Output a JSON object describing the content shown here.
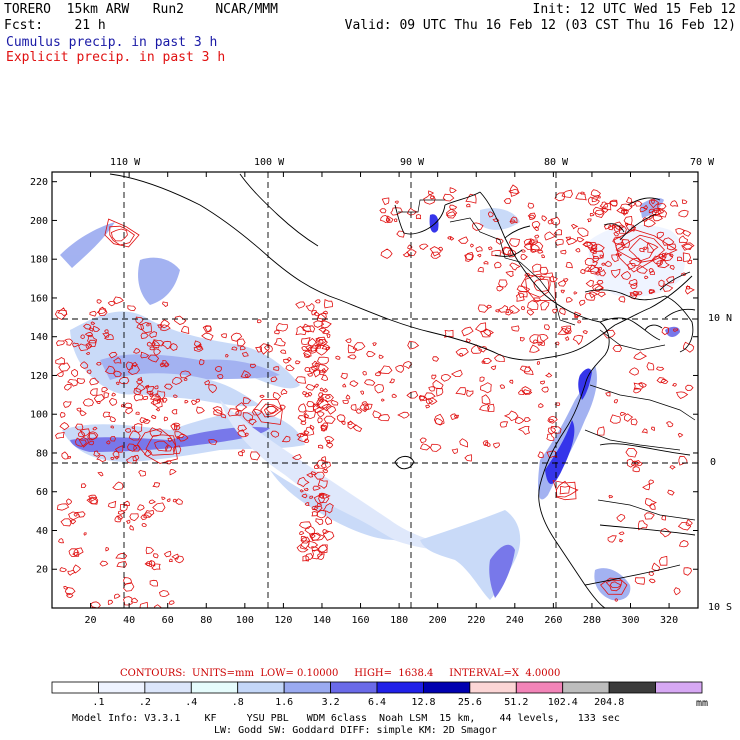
{
  "header": {
    "line1_left": "TORERO  15km ARW   Run2    NCAR/MMM",
    "line1_right": "Init: 12 UTC Wed 15 Feb 12",
    "line2_left": "Fcst:    21 h",
    "line2_right": "Valid: 09 UTC Thu 16 Feb 12 (03 CST Thu 16 Feb 12)",
    "cumulus_label": "Cumulus precip. in past 3 h",
    "explicit_label": "Explicit precip. in past 3 h"
  },
  "map": {
    "top_lon_labels": [
      "110 W",
      "100 W",
      "90 W",
      "80 W",
      "70 W"
    ],
    "right_lat_labels": [
      "10 N",
      "0",
      "10 S"
    ],
    "y_ticks": [
      "20",
      "40",
      "60",
      "80",
      "100",
      "120",
      "140",
      "160",
      "180",
      "200",
      "220"
    ],
    "x_ticks": [
      "20",
      "40",
      "60",
      "80",
      "100",
      "120",
      "140",
      "160",
      "180",
      "200",
      "220",
      "240",
      "260",
      "280",
      "300",
      "320"
    ],
    "cumulus_color": "#2a2ae0",
    "explicit_color": "#e01010"
  },
  "contours_info": {
    "text": "CONTOURS:  UNITS=mm  LOW= 0.10000     HIGH=  1638.4     INTERVAL=X  4.0000"
  },
  "colorbar": {
    "labels": [
      ".1",
      ".2",
      ".4",
      ".8",
      "1.6",
      "3.2",
      "6.4",
      "12.8",
      "25.6",
      "51.2",
      "102.4",
      "204.8"
    ],
    "unit": "mm",
    "colors": [
      "#ffffff",
      "#eef3ff",
      "#dce6fb",
      "#e6fcfc",
      "#c4d7f8",
      "#9aaaf0",
      "#6a6ae8",
      "#2020e8",
      "#0000b0",
      "#fcd6d6",
      "#f284b8",
      "#bdbdbd",
      "#3c3c3c",
      "#d7a8f4"
    ]
  },
  "footer": {
    "line1": "Model Info: V3.3.1    KF     YSU PBL   WDM 6class  Noah LSM  15 km,    44 levels,   133 sec",
    "line2": "LW: Godd SW: Goddard DIFF: simple KM: 2D Smagor"
  }
}
